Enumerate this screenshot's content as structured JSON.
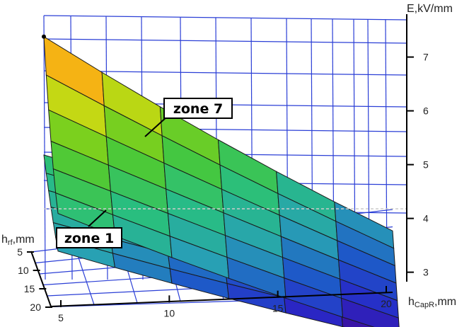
{
  "chart_data": {
    "type": "surface3d",
    "title": "",
    "axes": {
      "z": {
        "label": "E,kV/mm",
        "ticks": [
          3,
          4,
          5,
          6,
          7
        ]
      },
      "x": {
        "label_main": "h",
        "label_sub": "CapR",
        "label_unit": ",mm",
        "ticks": [
          5,
          10,
          15,
          20
        ]
      },
      "y": {
        "label_main": "h",
        "label_sub": "rf",
        "label_unit": ",mm",
        "ticks": [
          5,
          10,
          15,
          20
        ]
      }
    },
    "reference_line": {
      "z": 4.1
    },
    "annotations": [
      {
        "text": "zone 7"
      },
      {
        "text": "zone 1"
      }
    ],
    "surfaces": [
      {
        "label": "zone 7",
        "corner_values": {
          "hcap5_hrf5": 7.3,
          "hcap20_hrf5": 3.9,
          "hcap5_hrf20": 5.0,
          "hcap20_hrf20": 2.8
        }
      },
      {
        "label": "zone 1",
        "corner_values": {
          "hcap5_hrf5": 5.1,
          "hcap20_hrf5": 3.6,
          "hcap5_hrf20": 4.3,
          "hcap20_hrf20": 2.7
        }
      }
    ],
    "grid": true
  }
}
